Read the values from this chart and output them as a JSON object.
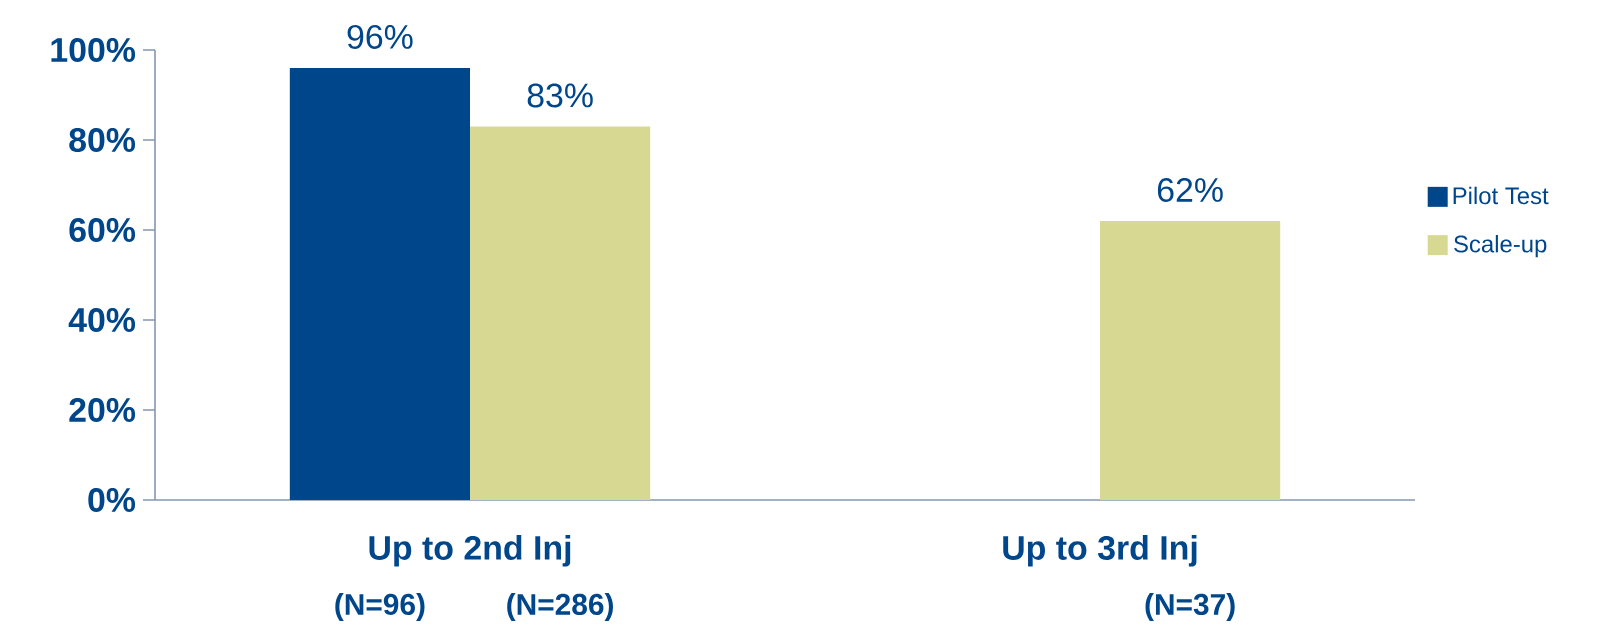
{
  "chart_data": {
    "type": "bar",
    "categories": [
      "Up to 2nd Inj",
      "Up to 3rd Inj"
    ],
    "series": [
      {
        "name": "Pilot Test",
        "color": "#00468b",
        "values": [
          96,
          null
        ],
        "value_labels": [
          "96%",
          null
        ]
      },
      {
        "name": "Scale-up",
        "color": "#d7d993",
        "values": [
          83,
          62
        ],
        "value_labels": [
          "83%",
          "62%"
        ]
      }
    ],
    "ylim": [
      0,
      100
    ],
    "yticks": [
      {
        "value": 0,
        "label": "0%"
      },
      {
        "value": 20,
        "label": "20%"
      },
      {
        "value": 40,
        "label": "40%"
      },
      {
        "value": 60,
        "label": "60%"
      },
      {
        "value": 80,
        "label": "80%"
      },
      {
        "value": 100,
        "label": "100%"
      }
    ],
    "annotations": [
      "(N=96)",
      "(N=286)",
      "(N=37)"
    ],
    "legend": "right",
    "grid": false
  }
}
